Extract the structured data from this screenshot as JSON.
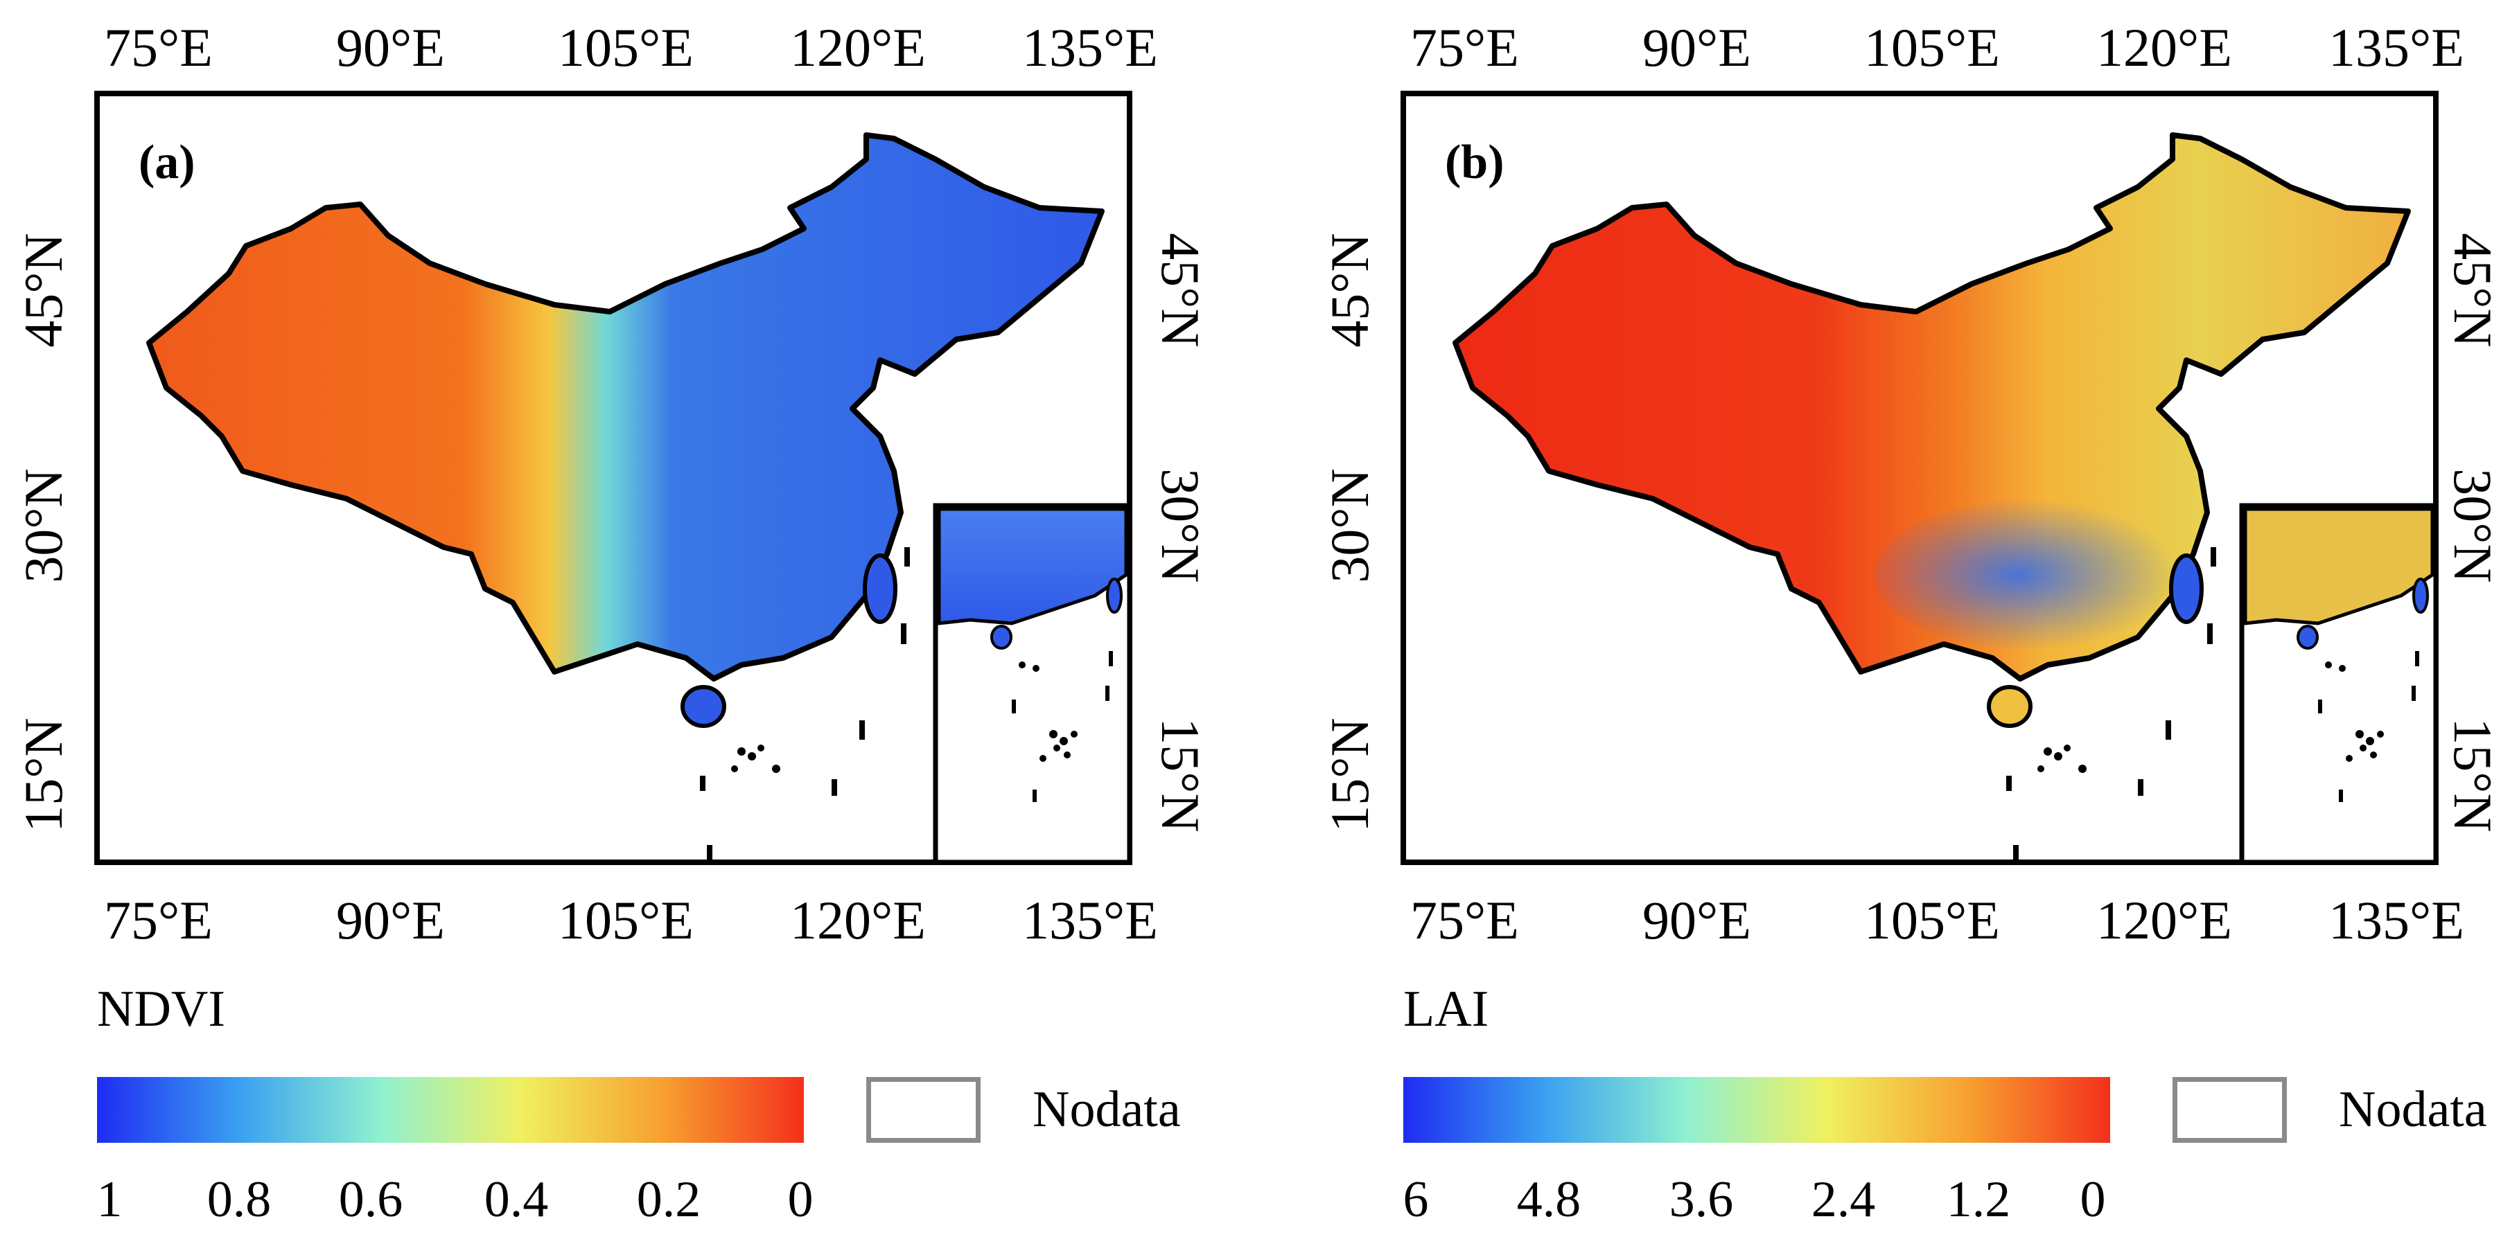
{
  "panels": [
    {
      "label": "(a)",
      "variable": "NDVI",
      "lon_ticks": [
        "75°E",
        "90°E",
        "105°E",
        "120°E",
        "135°E"
      ],
      "lat_ticks": [
        "45°N",
        "30°N",
        "15°N"
      ],
      "colorbar_ticks": [
        "1",
        "0.8",
        "0.6",
        "0.4",
        "0.2",
        "0"
      ],
      "nodata_label": "Nodata",
      "colors": {
        "west": "#f05a1c",
        "east": "#2f63e8",
        "mid": "#f7d24a"
      }
    },
    {
      "label": "(b)",
      "variable": "LAI",
      "lon_ticks": [
        "75°E",
        "90°E",
        "105°E",
        "120°E",
        "135°E"
      ],
      "lat_ticks": [
        "45°N",
        "30°N",
        "15°N"
      ],
      "colorbar_ticks": [
        "6",
        "4.8",
        "3.6",
        "2.4",
        "1.2",
        "0"
      ],
      "nodata_label": "Nodata",
      "colors": {
        "west": "#ee2a14",
        "east": "#f2b440",
        "mid": "#3a78e6"
      }
    }
  ],
  "colorbar_gradient": [
    "#1e2cf2",
    "#3aa0f0",
    "#8ff0d0",
    "#f0f060",
    "#f7a030",
    "#f4301c"
  ]
}
